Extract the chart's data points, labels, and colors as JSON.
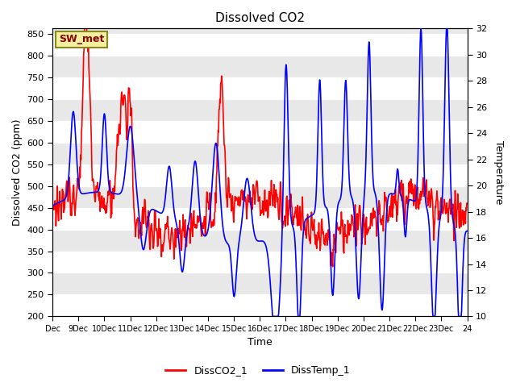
{
  "title": "Dissolved CO2",
  "ylabel_left": "Dissolved CO2 (ppm)",
  "ylabel_right": "Temperature",
  "xlabel": "Time",
  "ylim_left": [
    200,
    862
  ],
  "ylim_right": [
    10,
    32
  ],
  "annotation_text": "SW_met",
  "legend_labels": [
    "DissCO2_1",
    "DissTemp_1"
  ],
  "background_color": "#ffffff",
  "band_color": "#e8e8e8",
  "x_tick_labels_short": [
    "Dec",
    "9Dec",
    "10Dec",
    "11Dec",
    "12Dec",
    "13Dec",
    "14Dec",
    "15Dec",
    "16Dec",
    "17Dec",
    "18Dec",
    "19Dec",
    "20Dec",
    "21Dec",
    "22Dec",
    "23Dec",
    "24"
  ],
  "yticks_left": [
    200,
    250,
    300,
    350,
    400,
    450,
    500,
    550,
    600,
    650,
    700,
    750,
    800,
    850
  ],
  "yticks_right": [
    10,
    12,
    14,
    16,
    18,
    20,
    22,
    24,
    26,
    28,
    30,
    32
  ],
  "n_days": 16,
  "n_per_day": 60
}
